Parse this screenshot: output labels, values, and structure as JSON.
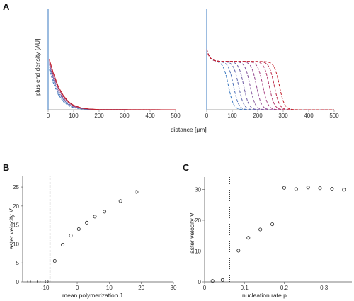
{
  "panel_labels": [
    "A",
    "B",
    "C"
  ],
  "colors": {
    "blue": "#3a78c0",
    "red": "#c41f2a",
    "axis": "#555555",
    "marker": "#222222"
  },
  "chart_data": [
    {
      "id": "A-left",
      "type": "line",
      "ylabel": "plus end density [AU]",
      "xlabel": "",
      "xlim": [
        0,
        500
      ],
      "xticks": [
        0,
        100,
        200,
        300,
        400,
        500
      ],
      "ylim": [
        0,
        1
      ],
      "line_style": "dashed",
      "series": [
        {
          "color": "#3a78c0",
          "x": [
            5,
            20,
            40,
            60,
            80,
            100,
            130,
            160,
            200,
            500
          ],
          "y": [
            0.4,
            0.27,
            0.15,
            0.08,
            0.04,
            0.02,
            0.008,
            0.003,
            0.001,
            0
          ]
        },
        {
          "color": "#5a6fb0",
          "x": [
            5,
            20,
            40,
            60,
            80,
            100,
            130,
            160,
            200,
            500
          ],
          "y": [
            0.43,
            0.3,
            0.17,
            0.1,
            0.05,
            0.025,
            0.01,
            0.004,
            0.001,
            0
          ]
        },
        {
          "color": "#7a5aa0",
          "x": [
            5,
            20,
            40,
            60,
            80,
            100,
            130,
            160,
            200,
            500
          ],
          "y": [
            0.45,
            0.32,
            0.19,
            0.11,
            0.06,
            0.03,
            0.012,
            0.005,
            0.001,
            0
          ]
        },
        {
          "color": "#9a4080",
          "x": [
            5,
            20,
            40,
            60,
            80,
            100,
            130,
            160,
            200,
            500
          ],
          "y": [
            0.47,
            0.34,
            0.21,
            0.12,
            0.07,
            0.035,
            0.014,
            0.006,
            0.002,
            0
          ]
        },
        {
          "color": "#b02c4a",
          "x": [
            5,
            20,
            40,
            60,
            80,
            100,
            130,
            160,
            200,
            500
          ],
          "y": [
            0.49,
            0.36,
            0.22,
            0.13,
            0.075,
            0.04,
            0.016,
            0.007,
            0.002,
            0
          ]
        },
        {
          "color": "#c41f2a",
          "x": [
            5,
            20,
            40,
            60,
            80,
            100,
            130,
            160,
            200,
            500
          ],
          "y": [
            0.5,
            0.37,
            0.23,
            0.14,
            0.08,
            0.045,
            0.018,
            0.008,
            0.002,
            0
          ]
        }
      ]
    },
    {
      "id": "A-right",
      "type": "line",
      "ylabel": "",
      "xlabel": "distance [μm]",
      "xlim": [
        0,
        500
      ],
      "xticks": [
        0,
        100,
        200,
        300,
        400,
        500
      ],
      "ylim": [
        0,
        1
      ],
      "line_style": "dashed",
      "front_positions": [
        85,
        105,
        125,
        145,
        170,
        195,
        220,
        245,
        265,
        285
      ],
      "plateau": 0.48,
      "series_colors": [
        "#3a78c0",
        "#4c70b8",
        "#5e66ae",
        "#705ca4",
        "#82529a",
        "#944890",
        "#a63e80",
        "#b23468",
        "#bc2a4a",
        "#c41f2a"
      ]
    },
    {
      "id": "B",
      "type": "scatter",
      "xlabel": "mean polymerization J",
      "ylabel": "aster velocity V",
      "xlim": [
        -17,
        30
      ],
      "ylim": [
        0,
        28
      ],
      "xticks": [
        -10,
        0,
        10,
        20,
        30
      ],
      "yticks": [
        0,
        5,
        10,
        15,
        20,
        25
      ],
      "vline": -8.5,
      "x": [
        -15,
        -12,
        -9.5,
        -7,
        -4.5,
        -2,
        0.5,
        3,
        5.5,
        8.5,
        13.5,
        18.5
      ],
      "y": [
        0.1,
        0.1,
        0.1,
        5.5,
        9.8,
        12.2,
        13.9,
        15.6,
        17.2,
        18.5,
        21.3,
        23.7
      ]
    },
    {
      "id": "C",
      "type": "scatter",
      "xlabel": "nucleation rate p",
      "ylabel": "aster velocity V",
      "xlim": [
        0,
        0.37
      ],
      "ylim": [
        0,
        34
      ],
      "xticks": [
        0,
        0.1,
        0.2,
        0.3
      ],
      "yticks": [
        0,
        10,
        20,
        30
      ],
      "vline": 0.063,
      "x": [
        0.02,
        0.045,
        0.085,
        0.11,
        0.14,
        0.17,
        0.2,
        0.23,
        0.26,
        0.29,
        0.32,
        0.35
      ],
      "y": [
        0.3,
        0.6,
        10.1,
        14.3,
        17.0,
        18.7,
        30.5,
        30.1,
        30.6,
        30.4,
        30.2,
        29.9
      ]
    }
  ]
}
